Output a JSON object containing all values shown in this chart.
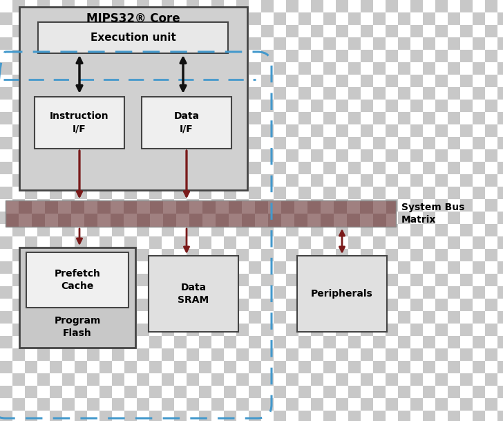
{
  "title": "MIPS32® Core",
  "checker_color1": "#ffffff",
  "checker_color2": "#c8c8c8",
  "checker_size": 18,
  "arrow_color": "#7a1a1a",
  "black_arrow_color": "#111111",
  "mips_box_fill": "#d0d0d0",
  "exec_box_fill": "#e8e8e8",
  "if_box_fill": "#efefef",
  "bus_color1": "#a08080",
  "bus_color2": "#8c6868",
  "dashed_color": "#4499cc",
  "bottom_box_fill": "#e0e0e0",
  "bottom_box_outer_fill": "#c8c8c8",
  "inner_box_fill": "#f0f0f0",
  "text_color": "#000000",
  "system_bus_label": "System Bus\nMatrix",
  "execution_unit_label": "Execution unit",
  "instruction_if_label": "Instruction\nI/F",
  "data_if_label": "Data\nI/F",
  "prefetch_cache_label": "Prefetch\nCache",
  "program_flash_label": "Program\nFlash",
  "data_sram_label": "Data\nSRAM",
  "peripherals_label": "Peripherals",
  "fig_w": 7.28,
  "fig_h": 6.09,
  "dpi": 100
}
